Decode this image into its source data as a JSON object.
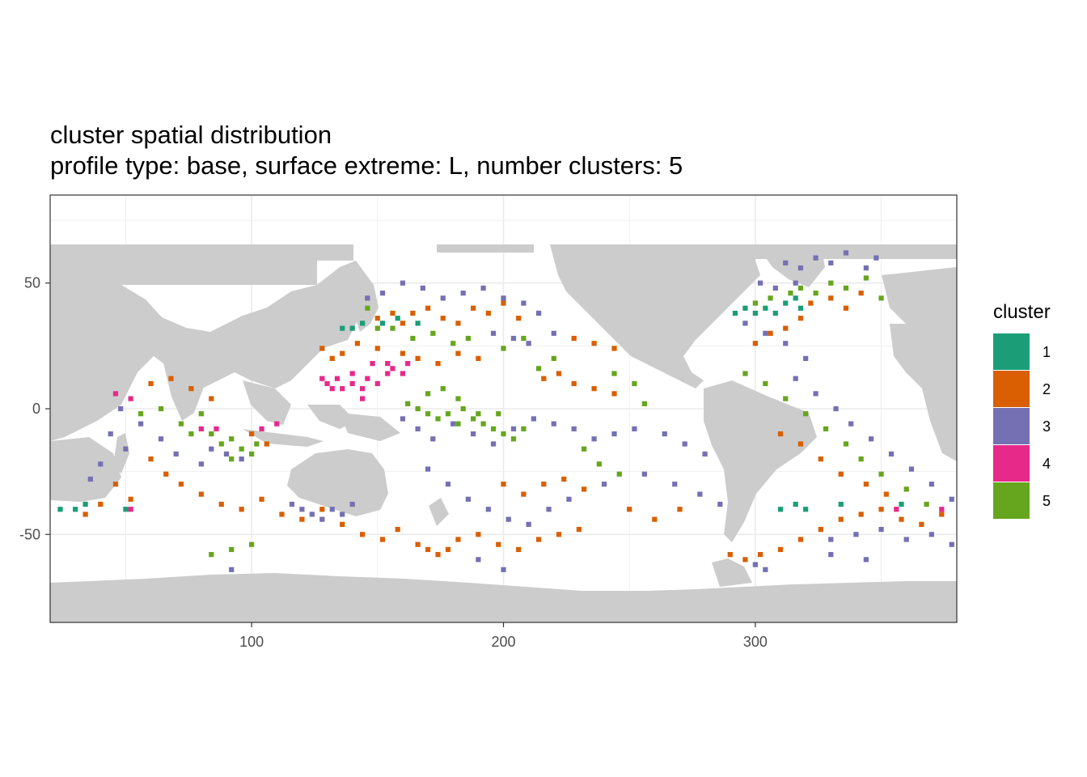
{
  "chart_data": {
    "type": "heatmap",
    "title": "cluster spatial distribution",
    "subtitle": "profile type: base, surface extreme: L, number clusters: 5",
    "xlabel": "",
    "ylabel": "",
    "xlim": [
      20,
      380
    ],
    "ylim": [
      -85,
      85
    ],
    "x_ticks": [
      100,
      200,
      300
    ],
    "y_ticks": [
      50,
      0,
      -50
    ],
    "x_tick_labels": [
      "100",
      "200",
      "300"
    ],
    "y_tick_labels": [
      "50",
      "0",
      "-50"
    ],
    "grid": true,
    "land_color": "#cccccc",
    "legend": {
      "title": "cluster",
      "placement": "right",
      "entries": [
        {
          "label": "1",
          "color": "#1b9e77"
        },
        {
          "label": "2",
          "color": "#d95f02"
        },
        {
          "label": "3",
          "color": "#7570b3"
        },
        {
          "label": "4",
          "color": "#e7298a"
        },
        {
          "label": "5",
          "color": "#66a61e"
        }
      ]
    },
    "cell_size_deg": 2,
    "regions": [
      {
        "cluster": "1",
        "cells": [
          [
            136,
            32
          ],
          [
            140,
            32
          ],
          [
            144,
            34
          ],
          [
            152,
            34
          ],
          [
            158,
            36
          ],
          [
            166,
            34
          ],
          [
            292,
            38
          ],
          [
            296,
            40
          ],
          [
            300,
            38
          ],
          [
            304,
            40
          ],
          [
            308,
            38
          ],
          [
            312,
            42
          ],
          [
            316,
            44
          ],
          [
            318,
            40
          ],
          [
            24,
            -40
          ],
          [
            30,
            -40
          ],
          [
            34,
            -38
          ],
          [
            50,
            -40
          ],
          [
            310,
            -40
          ],
          [
            316,
            -38
          ],
          [
            320,
            -40
          ],
          [
            334,
            -38
          ],
          [
            358,
            -38
          ]
        ]
      },
      {
        "cluster": "2",
        "cells": [
          [
            150,
            36
          ],
          [
            156,
            38
          ],
          [
            160,
            34
          ],
          [
            164,
            38
          ],
          [
            170,
            40
          ],
          [
            176,
            36
          ],
          [
            182,
            34
          ],
          [
            188,
            40
          ],
          [
            194,
            38
          ],
          [
            200,
            42
          ],
          [
            206,
            36
          ],
          [
            128,
            24
          ],
          [
            132,
            20
          ],
          [
            136,
            22
          ],
          [
            142,
            26
          ],
          [
            150,
            24
          ],
          [
            160,
            22
          ],
          [
            166,
            20
          ],
          [
            174,
            18
          ],
          [
            182,
            22
          ],
          [
            190,
            20
          ],
          [
            216,
            12
          ],
          [
            222,
            14
          ],
          [
            228,
            10
          ],
          [
            236,
            8
          ],
          [
            244,
            6
          ],
          [
            228,
            28
          ],
          [
            236,
            26
          ],
          [
            244,
            24
          ],
          [
            300,
            26
          ],
          [
            306,
            30
          ],
          [
            312,
            32
          ],
          [
            318,
            36
          ],
          [
            322,
            42
          ],
          [
            330,
            44
          ],
          [
            336,
            40
          ],
          [
            342,
            46
          ],
          [
            60,
            -20
          ],
          [
            66,
            -26
          ],
          [
            72,
            -30
          ],
          [
            80,
            -34
          ],
          [
            88,
            -38
          ],
          [
            96,
            -40
          ],
          [
            104,
            -36
          ],
          [
            112,
            -42
          ],
          [
            120,
            -44
          ],
          [
            128,
            -40
          ],
          [
            136,
            -46
          ],
          [
            144,
            -50
          ],
          [
            152,
            -52
          ],
          [
            158,
            -48
          ],
          [
            166,
            -54
          ],
          [
            170,
            -56
          ],
          [
            174,
            -58
          ],
          [
            178,
            -56
          ],
          [
            182,
            -52
          ],
          [
            190,
            -50
          ],
          [
            198,
            -54
          ],
          [
            206,
            -56
          ],
          [
            214,
            -52
          ],
          [
            222,
            -50
          ],
          [
            230,
            -48
          ],
          [
            46,
            -30
          ],
          [
            52,
            -36
          ],
          [
            40,
            -38
          ],
          [
            34,
            -42
          ],
          [
            100,
            -10
          ],
          [
            106,
            -14
          ],
          [
            290,
            -58
          ],
          [
            296,
            -60
          ],
          [
            302,
            -58
          ],
          [
            310,
            -56
          ],
          [
            318,
            -52
          ],
          [
            326,
            -48
          ],
          [
            334,
            -44
          ],
          [
            342,
            -42
          ],
          [
            350,
            -40
          ],
          [
            358,
            -44
          ],
          [
            366,
            -46
          ],
          [
            374,
            -42
          ],
          [
            310,
            -10
          ],
          [
            318,
            -14
          ],
          [
            326,
            -20
          ],
          [
            334,
            -26
          ],
          [
            344,
            -30
          ],
          [
            352,
            -34
          ],
          [
            200,
            -30
          ],
          [
            208,
            -34
          ],
          [
            216,
            -30
          ],
          [
            224,
            -28
          ],
          [
            232,
            -32
          ],
          [
            250,
            -40
          ],
          [
            260,
            -44
          ],
          [
            270,
            -40
          ],
          [
            60,
            10
          ],
          [
            68,
            12
          ],
          [
            76,
            8
          ],
          [
            84,
            4
          ]
        ]
      },
      {
        "cluster": "3",
        "cells": [
          [
            146,
            44
          ],
          [
            152,
            46
          ],
          [
            160,
            50
          ],
          [
            168,
            48
          ],
          [
            176,
            44
          ],
          [
            184,
            46
          ],
          [
            192,
            48
          ],
          [
            200,
            44
          ],
          [
            208,
            42
          ],
          [
            214,
            38
          ],
          [
            196,
            30
          ],
          [
            204,
            28
          ],
          [
            210,
            26
          ],
          [
            220,
            30
          ],
          [
            312,
            58
          ],
          [
            318,
            56
          ],
          [
            324,
            60
          ],
          [
            330,
            58
          ],
          [
            336,
            62
          ],
          [
            344,
            56
          ],
          [
            348,
            60
          ],
          [
            302,
            50
          ],
          [
            308,
            48
          ],
          [
            316,
            50
          ],
          [
            296,
            34
          ],
          [
            304,
            30
          ],
          [
            312,
            26
          ],
          [
            320,
            20
          ],
          [
            316,
            12
          ],
          [
            324,
            6
          ],
          [
            332,
            0
          ],
          [
            338,
            -6
          ],
          [
            346,
            -12
          ],
          [
            354,
            -18
          ],
          [
            362,
            -24
          ],
          [
            370,
            -30
          ],
          [
            378,
            -36
          ],
          [
            120,
            -40
          ],
          [
            124,
            -42
          ],
          [
            128,
            -44
          ],
          [
            132,
            -40
          ],
          [
            136,
            -42
          ],
          [
            140,
            -38
          ],
          [
            116,
            -38
          ],
          [
            84,
            -16
          ],
          [
            90,
            -18
          ],
          [
            96,
            -20
          ],
          [
            80,
            -22
          ],
          [
            70,
            -18
          ],
          [
            64,
            -12
          ],
          [
            56,
            -6
          ],
          [
            48,
            0
          ],
          [
            44,
            -10
          ],
          [
            50,
            -16
          ],
          [
            40,
            -22
          ],
          [
            36,
            -28
          ],
          [
            160,
            -4
          ],
          [
            166,
            -8
          ],
          [
            172,
            -12
          ],
          [
            180,
            -6
          ],
          [
            188,
            -10
          ],
          [
            196,
            -14
          ],
          [
            204,
            -8
          ],
          [
            212,
            -4
          ],
          [
            220,
            -6
          ],
          [
            228,
            -8
          ],
          [
            236,
            -12
          ],
          [
            244,
            -10
          ],
          [
            252,
            -8
          ],
          [
            264,
            -10
          ],
          [
            272,
            -14
          ],
          [
            280,
            -18
          ],
          [
            170,
            -24
          ],
          [
            178,
            -30
          ],
          [
            186,
            -36
          ],
          [
            194,
            -40
          ],
          [
            202,
            -44
          ],
          [
            210,
            -46
          ],
          [
            218,
            -40
          ],
          [
            226,
            -36
          ],
          [
            240,
            -30
          ],
          [
            256,
            -26
          ],
          [
            268,
            -30
          ],
          [
            278,
            -34
          ],
          [
            286,
            -38
          ],
          [
            92,
            -64
          ],
          [
            190,
            -60
          ],
          [
            200,
            -64
          ],
          [
            300,
            -62
          ],
          [
            304,
            -64
          ],
          [
            330,
            -52
          ],
          [
            340,
            -50
          ],
          [
            350,
            -48
          ],
          [
            360,
            -52
          ],
          [
            370,
            -50
          ],
          [
            378,
            -54
          ],
          [
            330,
            -58
          ],
          [
            344,
            -60
          ]
        ]
      },
      {
        "cluster": "4",
        "cells": [
          [
            128,
            12
          ],
          [
            130,
            10
          ],
          [
            134,
            12
          ],
          [
            136,
            8
          ],
          [
            140,
            10
          ],
          [
            144,
            8
          ],
          [
            146,
            12
          ],
          [
            150,
            10
          ],
          [
            154,
            14
          ],
          [
            140,
            14
          ],
          [
            132,
            8
          ],
          [
            148,
            18
          ],
          [
            154,
            18
          ],
          [
            156,
            16
          ],
          [
            160,
            14
          ],
          [
            162,
            18
          ],
          [
            144,
            4
          ],
          [
            80,
            -8
          ],
          [
            86,
            -8
          ],
          [
            52,
            4
          ],
          [
            46,
            6
          ],
          [
            104,
            -8
          ],
          [
            110,
            -6
          ],
          [
            356,
            -40
          ],
          [
            374,
            -40
          ],
          [
            52,
            -40
          ]
        ]
      },
      {
        "cluster": "5",
        "cells": [
          [
            146,
            40
          ],
          [
            150,
            32
          ],
          [
            156,
            32
          ],
          [
            164,
            28
          ],
          [
            172,
            30
          ],
          [
            180,
            26
          ],
          [
            186,
            28
          ],
          [
            170,
            6
          ],
          [
            176,
            8
          ],
          [
            182,
            4
          ],
          [
            184,
            0
          ],
          [
            178,
            -2
          ],
          [
            174,
            -4
          ],
          [
            182,
            -6
          ],
          [
            188,
            -4
          ],
          [
            192,
            -6
          ],
          [
            196,
            -8
          ],
          [
            190,
            -2
          ],
          [
            198,
            -2
          ],
          [
            200,
            -10
          ],
          [
            204,
            -12
          ],
          [
            170,
            -2
          ],
          [
            166,
            0
          ],
          [
            162,
            2
          ],
          [
            208,
            -8
          ],
          [
            84,
            -10
          ],
          [
            88,
            -14
          ],
          [
            92,
            -12
          ],
          [
            96,
            -16
          ],
          [
            100,
            -18
          ],
          [
            92,
            -20
          ],
          [
            102,
            -14
          ],
          [
            76,
            -10
          ],
          [
            72,
            -6
          ],
          [
            80,
            -2
          ],
          [
            64,
            0
          ],
          [
            56,
            -2
          ],
          [
            84,
            -58
          ],
          [
            92,
            -56
          ],
          [
            100,
            -54
          ],
          [
            300,
            42
          ],
          [
            306,
            44
          ],
          [
            314,
            46
          ],
          [
            318,
            48
          ],
          [
            324,
            46
          ],
          [
            330,
            50
          ],
          [
            336,
            48
          ],
          [
            344,
            52
          ],
          [
            350,
            44
          ],
          [
            296,
            14
          ],
          [
            304,
            10
          ],
          [
            312,
            4
          ],
          [
            320,
            -2
          ],
          [
            328,
            -8
          ],
          [
            336,
            -14
          ],
          [
            342,
            -20
          ],
          [
            350,
            -26
          ],
          [
            360,
            -32
          ],
          [
            368,
            -38
          ],
          [
            200,
            24
          ],
          [
            208,
            28
          ],
          [
            214,
            16
          ],
          [
            220,
            20
          ],
          [
            244,
            14
          ],
          [
            252,
            10
          ],
          [
            256,
            2
          ],
          [
            232,
            -16
          ],
          [
            238,
            -22
          ],
          [
            246,
            -26
          ]
        ]
      }
    ]
  }
}
